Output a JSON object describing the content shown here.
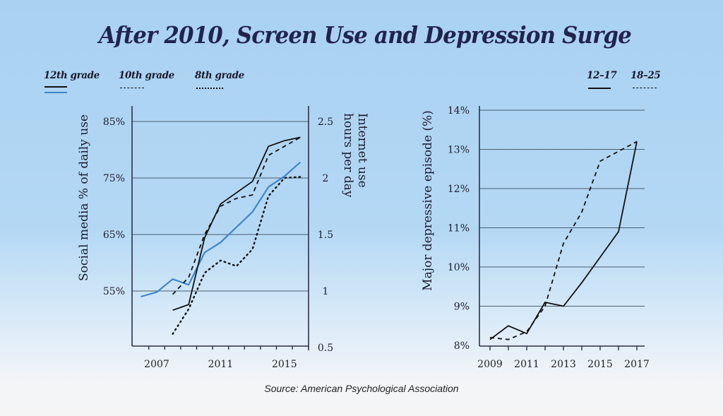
{
  "title": "After 2010, Screen Use and Depression Surge",
  "source": "Source: American Psychological Association",
  "legends": {
    "left": [
      {
        "label": "12th grade",
        "style": "solid-pair"
      },
      {
        "label": "10th grade",
        "style": "dashed"
      },
      {
        "label": "8th grade",
        "style": "dotted"
      }
    ],
    "right": [
      {
        "label": "12–17",
        "style": "solid"
      },
      {
        "label": "18–25",
        "style": "dashed"
      }
    ]
  },
  "colors": {
    "ink": "#111111",
    "blue": "#3f86cc",
    "grid": "#4a5d6e",
    "axis": "#2c2f4a",
    "title": "#22244e"
  },
  "chart_data": [
    {
      "type": "line",
      "title": "",
      "xlabel": "",
      "ylabel": "Social media % of daily use",
      "ylabel_right": "Internet use hours per day",
      "x_ticks": [
        2007,
        2011,
        2015
      ],
      "x_range": [
        2005.5,
        2016.5
      ],
      "ylim": [
        50,
        87
      ],
      "y_ticks": [
        "55%",
        "65%",
        "75%",
        "85%"
      ],
      "y_tick_values": [
        55,
        65,
        75,
        85
      ],
      "ylim_right": [
        0.5,
        2.5
      ],
      "y_ticks_right": [
        "0.5",
        "1",
        "1.5",
        "2",
        "2.5"
      ],
      "y_tick_values_right": [
        0.5,
        1,
        1.5,
        2,
        2.5
      ],
      "grid": true,
      "legend_position": "top-left",
      "series": [
        {
          "name": "12th grade social media (%)",
          "axis": "left",
          "style": "solid",
          "color": "blue",
          "x": [
            2006,
            2007,
            2008,
            2009,
            2010,
            2011,
            2012,
            2013,
            2014,
            2015,
            2016
          ],
          "values": [
            54.0,
            54.8,
            57.1,
            56.1,
            61.8,
            63.6,
            66.3,
            69.0,
            73.4,
            75.3,
            77.8
          ]
        },
        {
          "name": "12th grade internet (hrs/day)",
          "axis": "right",
          "style": "solid",
          "color": "ink",
          "x": [
            2008,
            2009,
            2010,
            2011,
            2013,
            2014,
            2015,
            2016
          ],
          "values": [
            0.83,
            0.88,
            1.47,
            1.77,
            1.97,
            2.28,
            2.33,
            2.36
          ]
        },
        {
          "name": "10th grade internet (hrs/day)",
          "axis": "right",
          "style": "dashed",
          "color": "ink",
          "x": [
            2008,
            2009,
            2010,
            2011,
            2012,
            2013,
            2014,
            2015,
            2016
          ],
          "values": [
            0.97,
            1.12,
            1.5,
            1.75,
            1.82,
            1.85,
            2.2,
            2.28,
            2.36
          ]
        },
        {
          "name": "8th grade internet (hrs/day)",
          "axis": "right",
          "style": "dotted",
          "color": "ink",
          "x": [
            2008,
            2009,
            2010,
            2011,
            2012,
            2013,
            2014,
            2015,
            2016
          ],
          "values": [
            0.62,
            0.84,
            1.16,
            1.27,
            1.22,
            1.37,
            1.84,
            2.0,
            2.01
          ]
        }
      ]
    },
    {
      "type": "line",
      "title": "",
      "xlabel": "",
      "ylabel": "Major depressive episode (%)",
      "x_ticks": [
        2009,
        2011,
        2013,
        2015,
        2017
      ],
      "x_range": [
        2008.4,
        2017.6
      ],
      "ylim": [
        8,
        14
      ],
      "y_ticks": [
        "8%",
        "9%",
        "10%",
        "11%",
        "12%",
        "13%",
        "14%"
      ],
      "y_tick_values": [
        8,
        9,
        10,
        11,
        12,
        13,
        14
      ],
      "grid": true,
      "legend_position": "top-right",
      "series": [
        {
          "name": "12–17",
          "style": "solid",
          "color": "ink",
          "x": [
            2009,
            2010,
            2011,
            2012,
            2013,
            2014,
            2015,
            2016,
            2017
          ],
          "values": [
            8.15,
            8.5,
            8.3,
            9.1,
            9.0,
            9.6,
            10.25,
            10.9,
            13.2
          ]
        },
        {
          "name": "18–25",
          "style": "dashed",
          "color": "ink",
          "x": [
            2009,
            2010,
            2011,
            2012,
            2013,
            2014,
            2015,
            2016,
            2017
          ],
          "values": [
            8.2,
            8.15,
            8.35,
            9.0,
            10.6,
            11.4,
            12.7,
            12.95,
            13.2
          ]
        }
      ]
    }
  ]
}
